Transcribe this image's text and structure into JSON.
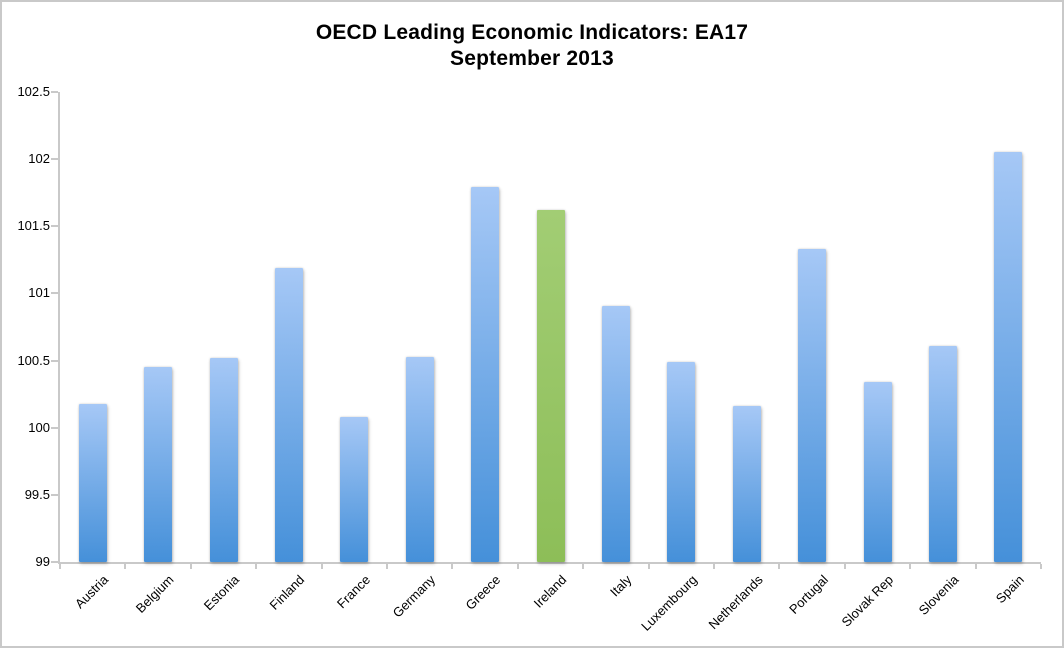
{
  "chart_data": {
    "type": "bar",
    "title": "OECD Leading Economic Indicators: EA17",
    "subtitle": "September 2013",
    "categories": [
      "Austria",
      "Belgium",
      "Estonia",
      "Finland",
      "France",
      "Germany",
      "Greece",
      "Ireland",
      "Italy",
      "Luxembourg",
      "Netherlands",
      "Portugal",
      "Slovak Rep",
      "Slovenia",
      "Spain"
    ],
    "values": [
      100.18,
      100.45,
      100.52,
      101.19,
      100.08,
      100.53,
      101.79,
      101.62,
      100.91,
      100.49,
      100.16,
      101.33,
      100.34,
      100.61,
      102.05
    ],
    "highlight_category": "Ireland",
    "xlabel": "",
    "ylabel": "",
    "ylim": [
      99,
      102.5
    ],
    "ytick_step": 0.5,
    "ytick_labels": [
      "99",
      "99.5",
      "100",
      "100.5",
      "101",
      "101.5",
      "102",
      "102.5"
    ],
    "grid": false,
    "legend": false,
    "layout": {
      "bar_style": "vertical gradient, light top to saturated bottom",
      "x_labels_rotated_degrees": 45
    },
    "colors": {
      "bar_top": "#a6c8f6",
      "bar_bottom": "#4590d9",
      "highlight_top": "#a2cd74",
      "highlight_bottom": "#8dbe58",
      "axis": "#c9c9c9",
      "text": "#000000",
      "background": "#ffffff"
    }
  }
}
